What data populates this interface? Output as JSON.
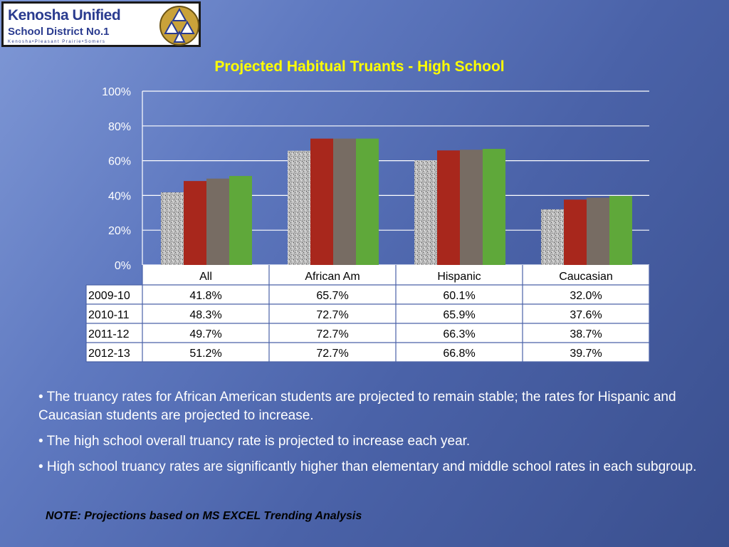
{
  "logo": {
    "line1": "Kenosha Unified",
    "line2": "School District No.1",
    "line3": "Kenosha•Pleasant Prairie•Somers"
  },
  "colors": {
    "series": [
      "#c8c8c8",
      "#a8271c",
      "#776c63",
      "#5fa83a"
    ],
    "title": "#ffff00",
    "grid": "#ffffff"
  },
  "chart_data": {
    "type": "bar",
    "title": "Projected Habitual Truants - High School",
    "categories": [
      "All",
      "African Am",
      "Hispanic",
      "Caucasian"
    ],
    "ylim": [
      0,
      100
    ],
    "yticks": [
      "0%",
      "20%",
      "40%",
      "60%",
      "80%",
      "100%"
    ],
    "grid": true,
    "legend": "data table below chart",
    "series": [
      {
        "name": "2009-10",
        "values": [
          41.8,
          65.7,
          60.1,
          32.0
        ],
        "labels": [
          "41.8%",
          "65.7%",
          "60.1%",
          "32.0%"
        ]
      },
      {
        "name": "2010-11",
        "values": [
          48.3,
          72.7,
          65.9,
          37.6
        ],
        "labels": [
          "48.3%",
          "72.7%",
          "65.9%",
          "37.6%"
        ]
      },
      {
        "name": "2011-12",
        "values": [
          49.7,
          72.7,
          66.3,
          38.7
        ],
        "labels": [
          "49.7%",
          "72.7%",
          "66.3%",
          "38.7%"
        ]
      },
      {
        "name": "2012-13",
        "values": [
          51.2,
          72.7,
          66.8,
          39.7
        ],
        "labels": [
          "51.2%",
          "72.7%",
          "66.8%",
          "39.7%"
        ]
      }
    ]
  },
  "bullets": [
    "• The truancy rates for African American students are projected to remain stable; the rates for Hispanic and Caucasian students are projected to increase.",
    "• The high school overall truancy rate is projected to increase each year.",
    "• High school truancy rates are significantly higher than elementary and middle school rates in each subgroup."
  ],
  "note": "NOTE: Projections based on MS EXCEL Trending Analysis"
}
